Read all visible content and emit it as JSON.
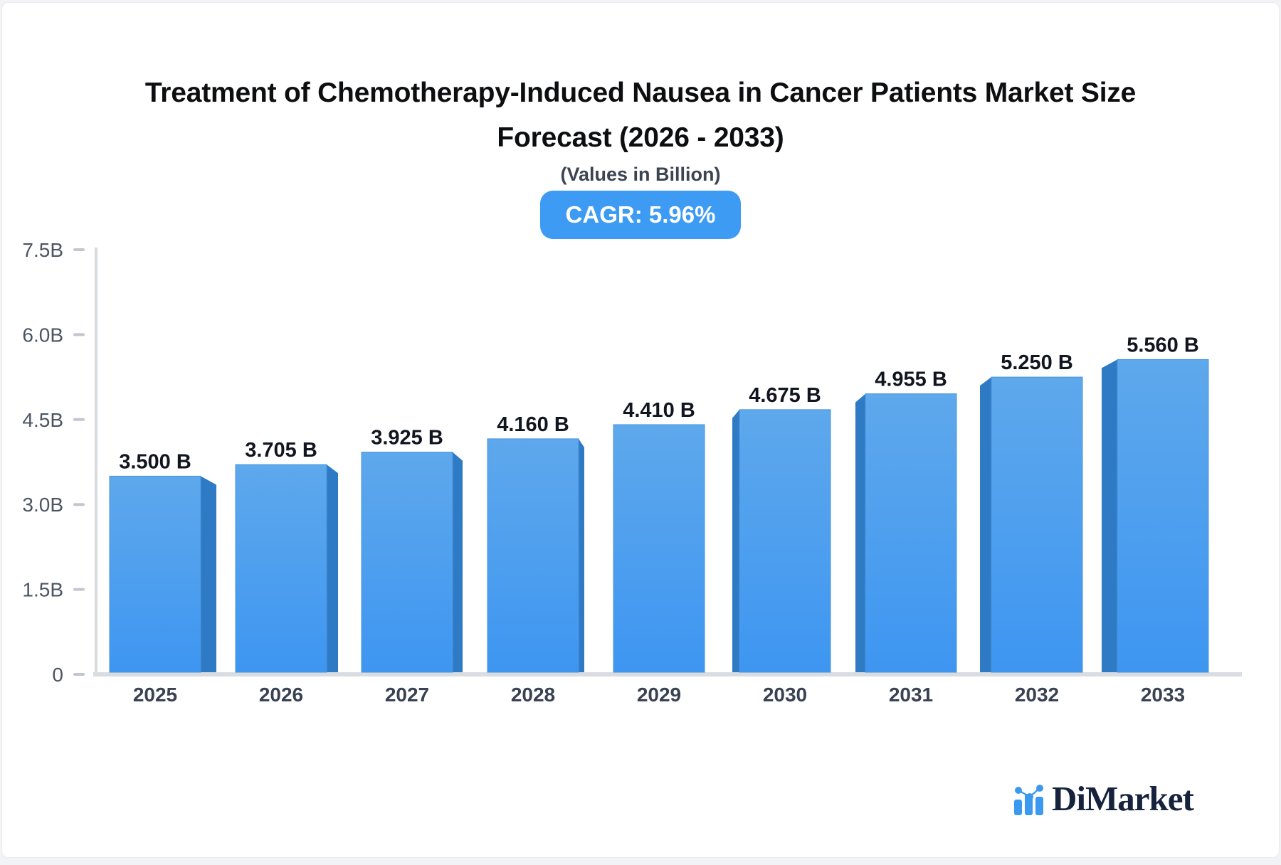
{
  "heading": {
    "line1": "Treatment of Chemotherapy-Induced Nausea in Cancer Patients Market Size",
    "line2": "Forecast (2026 - 2033)",
    "subtitle": "(Values in Billion)"
  },
  "badge": {
    "label": "CAGR: 5.96%",
    "bg_color": "#3D9BF3"
  },
  "chart_data": {
    "type": "bar",
    "title": "Treatment of Chemotherapy-Induced Nausea in Cancer Patients Market Size Forecast (2026 - 2033)",
    "subtitle": "(Values in Billion)",
    "categories": [
      "2025",
      "2026",
      "2027",
      "2028",
      "2029",
      "2030",
      "2031",
      "2032",
      "2033"
    ],
    "values": [
      3.5,
      3.705,
      3.925,
      4.16,
      4.41,
      4.675,
      4.955,
      5.25,
      5.56
    ],
    "value_labels": [
      "3.500 B",
      "3.705 B",
      "3.925 B",
      "4.160 B",
      "4.410 B",
      "4.675 B",
      "4.955 B",
      "5.250 B",
      "5.560 B"
    ],
    "xlabel": "",
    "ylabel": "",
    "ylim": [
      0,
      7.5
    ],
    "yticks": [
      {
        "value": 7.5,
        "label": "7.5B"
      },
      {
        "value": 6.0,
        "label": "6.0B"
      },
      {
        "value": 4.5,
        "label": "4.5B"
      },
      {
        "value": 3.0,
        "label": "3.0B"
      },
      {
        "value": 1.5,
        "label": "1.5B"
      },
      {
        "value": 0,
        "label": "0"
      }
    ],
    "grid": false,
    "legend_position": "none",
    "style": "pseudo-3d bars, perspective toward center",
    "colors": {
      "bar_gradient_top": "#5EA8EC",
      "bar_gradient_bottom": "#3E96F1",
      "bar_edge": "#4a93dc",
      "bar_side": "#2E7AC5",
      "axis_line": "#d7dade",
      "baseline": "#d9dce1",
      "tick_dash": "#c2c7cf",
      "tick_label": "#4b5563",
      "year_label": "#394252",
      "value_label": "#10151f"
    }
  },
  "logo": {
    "text": "DiMarket",
    "icon": "bar-chart-logo-icon",
    "icon_color": "#3B99F0",
    "text_color": "#16233c"
  }
}
